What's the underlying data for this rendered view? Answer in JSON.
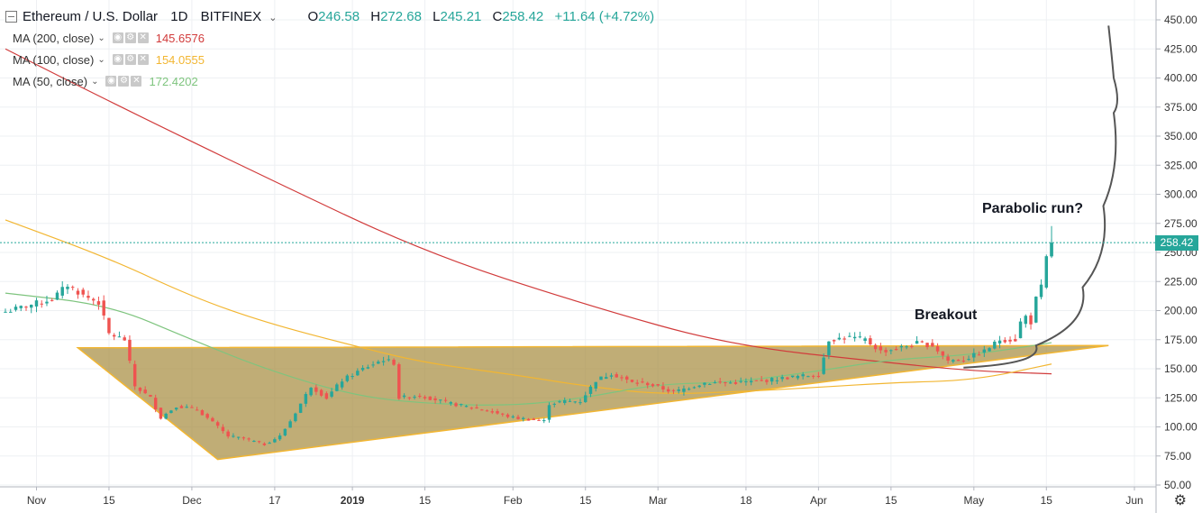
{
  "header": {
    "symbol": "Ethereum / U.S. Dollar",
    "interval": "1D",
    "exchange": "BITFINEX",
    "open_label": "O",
    "open": "246.58",
    "high_label": "H",
    "high": "272.68",
    "low_label": "L",
    "low": "245.21",
    "close_label": "C",
    "close": "258.42",
    "change": "+11.64 (+4.72%)"
  },
  "indicators": [
    {
      "label": "MA (200, close)",
      "value": "145.6576",
      "color": "#d13b3b"
    },
    {
      "label": "MA (100, close)",
      "value": "154.0555",
      "color": "#f2b632"
    },
    {
      "label": "MA (50, close)",
      "value": "172.4202",
      "color": "#7ec47e"
    }
  ],
  "last_price_tag": "258.42",
  "annotations": {
    "breakout": "Breakout",
    "parabolic": "Parabolic run?"
  },
  "chart_data": {
    "type": "candlestick",
    "y_axis": {
      "min": 50,
      "max": 450,
      "ticks": [
        "50.00",
        "75.00",
        "100.00",
        "125.00",
        "150.00",
        "175.00",
        "200.00",
        "225.00",
        "250.00",
        "275.00",
        "300.00",
        "325.00",
        "350.00",
        "375.00",
        "400.00",
        "425.00",
        "450.00"
      ]
    },
    "x_axis": {
      "start": "2018-10-26",
      "end": "2019-06-01",
      "ticks": [
        {
          "date": "2018-11-01",
          "label": "Nov"
        },
        {
          "date": "2018-11-15",
          "label": "15"
        },
        {
          "date": "2018-12-01",
          "label": "Dec"
        },
        {
          "date": "2018-12-17",
          "label": "17"
        },
        {
          "date": "2019-01-01",
          "label": "2019"
        },
        {
          "date": "2019-01-15",
          "label": "15"
        },
        {
          "date": "2019-02-01",
          "label": "Feb"
        },
        {
          "date": "2019-02-15",
          "label": "15"
        },
        {
          "date": "2019-03-01",
          "label": "Mar"
        },
        {
          "date": "2019-03-18",
          "label": "18"
        },
        {
          "date": "2019-04-01",
          "label": "Apr"
        },
        {
          "date": "2019-04-15",
          "label": "15"
        },
        {
          "date": "2019-05-01",
          "label": "May"
        },
        {
          "date": "2019-05-15",
          "label": "15"
        },
        {
          "date": "2019-06-01",
          "label": "Jun"
        }
      ]
    },
    "last_price": 258.42,
    "close_anchors": [
      [
        "2018-10-26",
        199
      ],
      [
        "2018-11-04",
        210
      ],
      [
        "2018-11-07",
        222
      ],
      [
        "2018-11-10",
        213
      ],
      [
        "2018-11-13",
        207
      ],
      [
        "2018-11-15",
        180
      ],
      [
        "2018-11-18",
        175
      ],
      [
        "2018-11-20",
        135
      ],
      [
        "2018-11-23",
        125
      ],
      [
        "2018-11-25",
        108
      ],
      [
        "2018-11-28",
        118
      ],
      [
        "2018-12-02",
        115
      ],
      [
        "2018-12-06",
        100
      ],
      [
        "2018-12-08",
        92
      ],
      [
        "2018-12-11",
        90
      ],
      [
        "2018-12-15",
        85
      ],
      [
        "2018-12-18",
        92
      ],
      [
        "2018-12-20",
        105
      ],
      [
        "2018-12-24",
        135
      ],
      [
        "2018-12-27",
        125
      ],
      [
        "2018-12-30",
        140
      ],
      [
        "2019-01-03",
        150
      ],
      [
        "2019-01-07",
        158
      ],
      [
        "2019-01-09",
        155
      ],
      [
        "2019-01-10",
        125
      ],
      [
        "2019-01-14",
        127
      ],
      [
        "2019-01-20",
        120
      ],
      [
        "2019-01-26",
        115
      ],
      [
        "2019-02-01",
        108
      ],
      [
        "2019-02-07",
        105
      ],
      [
        "2019-02-08",
        120
      ],
      [
        "2019-02-11",
        122
      ],
      [
        "2019-02-14",
        122
      ],
      [
        "2019-02-17",
        140
      ],
      [
        "2019-02-20",
        146
      ],
      [
        "2019-02-24",
        138
      ],
      [
        "2019-02-27",
        137
      ],
      [
        "2019-03-04",
        130
      ],
      [
        "2019-03-10",
        138
      ],
      [
        "2019-03-15",
        138
      ],
      [
        "2019-03-20",
        139
      ],
      [
        "2019-03-27",
        143
      ],
      [
        "2019-04-01",
        145
      ],
      [
        "2019-04-03",
        175
      ],
      [
        "2019-04-07",
        177
      ],
      [
        "2019-04-10",
        175
      ],
      [
        "2019-04-13",
        165
      ],
      [
        "2019-04-16",
        167
      ],
      [
        "2019-04-20",
        172
      ],
      [
        "2019-04-23",
        170
      ],
      [
        "2019-04-26",
        157
      ],
      [
        "2019-04-29",
        158
      ],
      [
        "2019-05-03",
        165
      ],
      [
        "2019-05-06",
        175
      ],
      [
        "2019-05-09",
        175
      ],
      [
        "2019-05-10",
        190
      ],
      [
        "2019-05-11",
        195
      ],
      [
        "2019-05-12",
        190
      ],
      [
        "2019-05-13",
        210
      ],
      [
        "2019-05-14",
        220
      ],
      [
        "2019-05-15",
        245
      ],
      [
        "2019-05-16",
        258.42
      ]
    ],
    "series": [
      {
        "name": "MA (200, close)",
        "color": "#d13b3b",
        "points": [
          [
            "2018-10-26",
            425
          ],
          [
            "2018-11-15",
            380
          ],
          [
            "2018-12-15",
            315
          ],
          [
            "2019-01-15",
            250
          ],
          [
            "2019-02-15",
            205
          ],
          [
            "2019-03-15",
            170
          ],
          [
            "2019-04-15",
            155
          ],
          [
            "2019-05-01",
            148
          ],
          [
            "2019-05-16",
            145.66
          ]
        ]
      },
      {
        "name": "MA (100, close)",
        "color": "#f2b632",
        "points": [
          [
            "2018-10-26",
            278
          ],
          [
            "2018-11-15",
            245
          ],
          [
            "2018-12-01",
            212
          ],
          [
            "2018-12-15",
            190
          ],
          [
            "2019-01-01",
            170
          ],
          [
            "2019-01-15",
            155
          ],
          [
            "2019-02-01",
            145
          ],
          [
            "2019-02-15",
            135
          ],
          [
            "2019-03-01",
            128
          ],
          [
            "2019-03-15",
            130
          ],
          [
            "2019-04-01",
            134
          ],
          [
            "2019-04-15",
            138
          ],
          [
            "2019-05-01",
            140
          ],
          [
            "2019-05-16",
            154.06
          ]
        ]
      },
      {
        "name": "MA (50, close)",
        "color": "#7ec47e",
        "points": [
          [
            "2018-10-26",
            215
          ],
          [
            "2018-11-15",
            205
          ],
          [
            "2018-12-01",
            175
          ],
          [
            "2018-12-15",
            150
          ],
          [
            "2019-01-01",
            127
          ],
          [
            "2019-01-15",
            120
          ],
          [
            "2019-02-01",
            118
          ],
          [
            "2019-02-15",
            125
          ],
          [
            "2019-03-01",
            137
          ],
          [
            "2019-03-15",
            138
          ],
          [
            "2019-04-01",
            148
          ],
          [
            "2019-04-15",
            158
          ],
          [
            "2019-05-01",
            162
          ],
          [
            "2019-05-16",
            172.42
          ]
        ]
      }
    ],
    "triangle": [
      [
        "2018-11-09",
        168
      ],
      [
        "2018-12-06",
        72
      ],
      [
        "2019-05-27",
        170
      ]
    ],
    "parabola": [
      [
        "2019-04-29",
        151
      ],
      [
        "2019-05-13",
        170
      ],
      [
        "2019-05-22",
        220
      ],
      [
        "2019-05-26",
        290
      ],
      [
        "2019-05-28",
        370
      ],
      [
        "2019-05-28",
        400
      ],
      [
        "2019-05-27",
        445
      ]
    ]
  }
}
